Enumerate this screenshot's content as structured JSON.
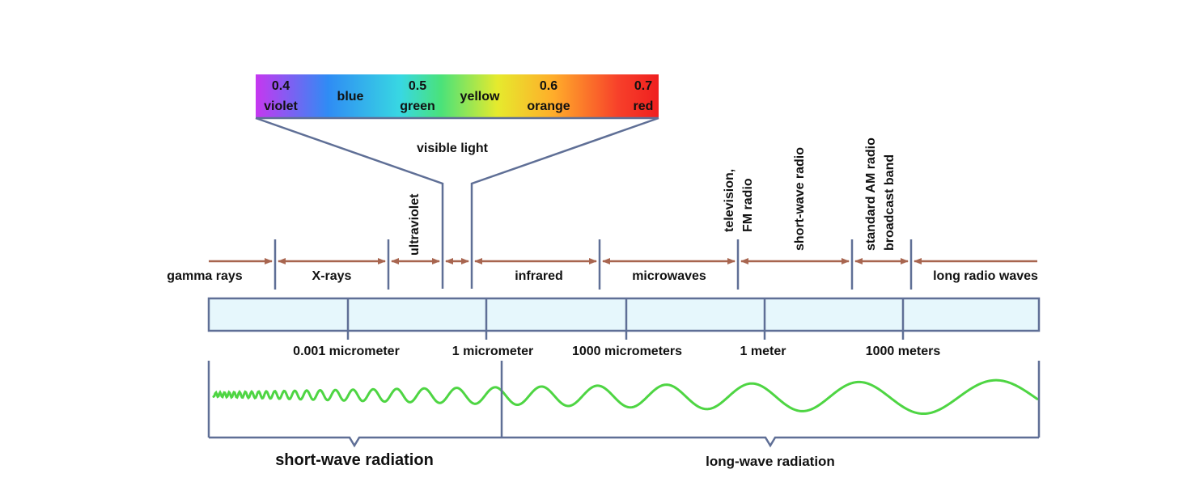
{
  "spectrum": {
    "visible_bar": {
      "cells": [
        {
          "value": "0.4",
          "name": "violet"
        },
        {
          "value": "",
          "name": "blue"
        },
        {
          "value": "0.5",
          "name": "green"
        },
        {
          "value": "",
          "name": "yellow"
        },
        {
          "value": "0.6",
          "name": "orange"
        },
        {
          "value": "0.7",
          "name": "red"
        }
      ],
      "gradient_colors": [
        "#c637f0",
        "#2f8cf4",
        "#38d8e2",
        "#4ae27a",
        "#e6ea2d",
        "#ffac2a",
        "#f7402a",
        "#ef1f1f"
      ]
    },
    "visible_light_label": "visible light",
    "bands": [
      {
        "name": "gamma rays",
        "orientation": "horizontal"
      },
      {
        "name": "X-rays",
        "orientation": "horizontal"
      },
      {
        "name": "ultraviolet",
        "orientation": "vertical"
      },
      {
        "name": "infrared",
        "orientation": "horizontal"
      },
      {
        "name": "microwaves",
        "orientation": "horizontal"
      },
      {
        "name": [
          "television,",
          "FM radio"
        ],
        "orientation": "vertical"
      },
      {
        "name": "short-wave radio",
        "orientation": "vertical"
      },
      {
        "name": [
          "standard AM radio",
          "broadcast band"
        ],
        "orientation": "vertical"
      },
      {
        "name": "long radio waves",
        "orientation": "horizontal"
      }
    ],
    "scale_labels": [
      "0.001 micrometer",
      "1 micrometer",
      "1000 micrometers",
      "1 meter",
      "1000 meters"
    ],
    "radiation_groups": [
      "short-wave radiation",
      "long-wave radiation"
    ],
    "colors": {
      "arrow": "#a8654f",
      "line": "#5f6f96",
      "scale_fill": "#e6f7fc",
      "wave": "#4ed543"
    }
  }
}
